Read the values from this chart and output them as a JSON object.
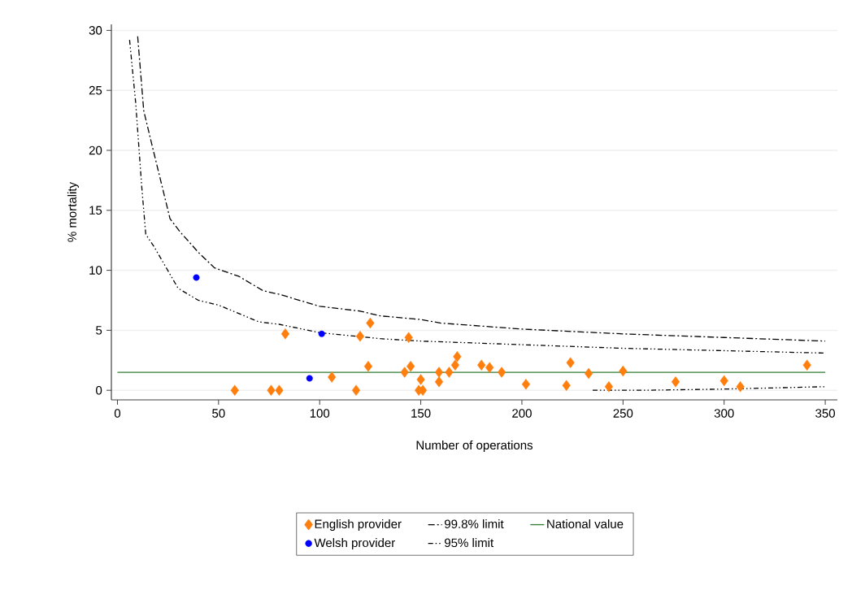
{
  "chart_data": {
    "type": "scatter",
    "xlabel": "Number of operations",
    "ylabel": "% mortality",
    "xlim": [
      -3,
      356
    ],
    "ylim": [
      -0.8,
      30.5
    ],
    "xticks": [
      0,
      50,
      100,
      150,
      200,
      250,
      300,
      350
    ],
    "yticks": [
      0,
      5,
      10,
      15,
      20,
      25,
      30
    ],
    "grid": "y",
    "legend": "bottom",
    "series": [
      {
        "name": "English provider",
        "marker": "diamond",
        "color": "#ff7f0e",
        "x": [
          58,
          76,
          80,
          83,
          106,
          118,
          120,
          124,
          125,
          142,
          144,
          145,
          149,
          150,
          151,
          159,
          159,
          164,
          167,
          168,
          180,
          184,
          190,
          202,
          222,
          224,
          233,
          243,
          250,
          276,
          300,
          308,
          341
        ],
        "values": [
          0,
          0,
          0,
          4.7,
          1.1,
          0,
          4.5,
          2.0,
          5.6,
          1.5,
          4.4,
          2.0,
          0,
          0.9,
          0,
          0.7,
          1.5,
          1.5,
          2.1,
          2.8,
          2.1,
          1.9,
          1.5,
          0.5,
          0.4,
          2.3,
          1.4,
          0.3,
          1.6,
          0.7,
          0.8,
          0.3,
          2.1
        ]
      },
      {
        "name": "99.8% limit",
        "type": "line",
        "marker": "none",
        "line_style": "dashed",
        "color": "#000000",
        "x": [
          10,
          13,
          17,
          26,
          31,
          40,
          48,
          60,
          72,
          80,
          100,
          120,
          130,
          150,
          160,
          200,
          250,
          300,
          350
        ],
        "values": [
          29.5,
          23.3,
          20.5,
          14.3,
          13.2,
          11.5,
          10.2,
          9.5,
          8.3,
          8.0,
          7.0,
          6.6,
          6.2,
          5.9,
          5.6,
          5.1,
          4.7,
          4.4,
          4.1
        ]
      },
      {
        "name": "National value",
        "type": "line",
        "marker": "none",
        "line_style": "solid",
        "color": "#2e7d32",
        "x": [
          0,
          350
        ],
        "values": [
          1.5,
          1.5
        ]
      },
      {
        "name": "Welsh provider",
        "marker": "circle",
        "color": "#0000ff",
        "x": [
          39,
          95,
          101
        ],
        "values": [
          9.4,
          1.0,
          4.7
        ]
      },
      {
        "name": "95% limit",
        "type": "line",
        "marker": "none",
        "line_style": "dotted",
        "color": "#000000",
        "x": [
          6,
          9,
          12,
          14,
          18,
          30,
          40,
          50,
          70,
          80,
          100,
          130,
          150,
          200,
          250,
          300,
          350
        ],
        "values": [
          29.2,
          24,
          17,
          13,
          12,
          8.5,
          7.5,
          7.1,
          5.7,
          5.5,
          4.8,
          4.3,
          4.1,
          3.8,
          3.5,
          3.3,
          3.1
        ]
      },
      {
        "type": "line",
        "marker": "none",
        "line_style": "dotted",
        "color": "#000000",
        "x": [
          235,
          260,
          300,
          350
        ],
        "values": [
          0,
          0,
          0.1,
          0.3
        ]
      }
    ]
  }
}
